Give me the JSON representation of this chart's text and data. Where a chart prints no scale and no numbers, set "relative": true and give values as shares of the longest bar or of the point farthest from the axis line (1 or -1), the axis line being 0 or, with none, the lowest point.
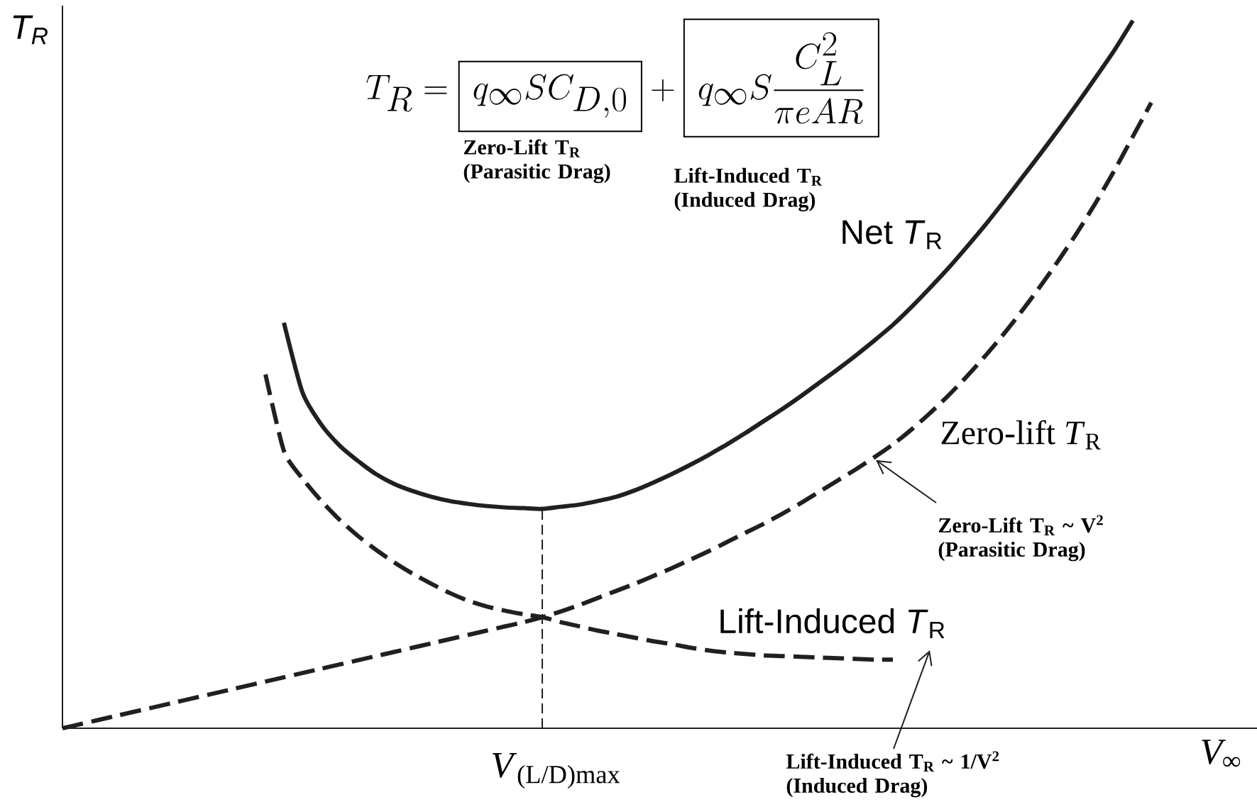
{
  "chart_data": {
    "type": "line",
    "relative": true,
    "legend": false,
    "marker": "none",
    "categories": [
      null,
      null,
      null,
      null,
      null,
      null,
      null,
      null,
      null,
      null,
      null,
      null,
      null,
      null,
      null,
      null,
      null,
      null,
      null,
      null,
      null,
      null,
      null,
      null,
      null,
      null,
      null,
      null,
      null,
      null,
      null,
      null,
      null,
      null,
      null,
      null,
      null,
      null,
      null,
      null,
      null,
      null,
      null,
      null,
      null,
      null,
      null,
      null,
      null,
      null,
      null,
      null,
      null,
      null,
      null,
      null,
      null,
      null,
      null,
      null
    ],
    "series": [
      {
        "name": "Net *T*$_{R}$",
        "color": "#231f20",
        "line_style": "solid",
        "values": [
          null,
          null,
          null,
          null,
          null,
          null,
          null,
          null,
          null,
          null,
          null,
          null,
          0.573,
          0.475,
          0.43,
          0.4,
          0.378,
          0.359,
          0.345,
          0.335,
          0.327,
          0.321,
          0.317,
          0.314,
          0.312,
          0.311,
          0.31,
          0.313,
          0.316,
          0.321,
          0.327,
          0.336,
          0.347,
          0.359,
          0.372,
          0.386,
          0.401,
          0.417,
          0.434,
          0.451,
          0.469,
          0.488,
          0.507,
          0.527,
          0.548,
          0.57,
          0.595,
          0.622,
          0.65,
          0.68,
          0.711,
          0.744,
          0.778,
          0.812,
          0.847,
          0.883,
          0.92,
          0.958,
          1,
          null
        ]
      },
      {
        "name": "Zero-lift *T*$_{R}$",
        "color": "#231f20",
        "line_style": "dashed",
        "values": [
          0,
          0.006,
          0.012,
          0.018,
          0.024,
          0.03,
          0.036,
          0.042,
          0.048,
          0.054,
          0.06,
          0.066,
          0.072,
          0.078,
          0.084,
          0.09,
          0.096,
          0.102,
          0.108,
          0.114,
          0.12,
          0.126,
          0.132,
          0.138,
          0.144,
          0.15,
          0.157,
          0.165,
          0.174,
          0.184,
          0.194,
          0.204,
          0.215,
          0.226,
          0.238,
          0.25,
          0.263,
          0.276,
          0.289,
          0.303,
          0.318,
          0.334,
          0.35,
          0.366,
          0.383,
          0.401,
          0.422,
          0.445,
          0.47,
          0.497,
          0.526,
          0.557,
          0.59,
          0.625,
          0.662,
          0.701,
          0.743,
          0.788,
          0.836,
          0.884
        ]
      },
      {
        "name": "Lift-Induced *T*$_{R}$",
        "color": "#231f20",
        "line_style": "dashed",
        "values": [
          null,
          null,
          null,
          null,
          null,
          null,
          null,
          null,
          null,
          null,
          null,
          0.5,
          0.392,
          0.353,
          0.322,
          0.295,
          0.272,
          0.252,
          0.234,
          0.218,
          0.204,
          0.191,
          0.18,
          0.172,
          0.166,
          0.161,
          0.157,
          0.15,
          0.144,
          0.138,
          0.133,
          0.128,
          0.123,
          0.119,
          0.114,
          0.11,
          0.107,
          0.105,
          0.103,
          0.102,
          0.101,
          0.1,
          0.099,
          0.098,
          0.097,
          0.097,
          null,
          null,
          null,
          null,
          null,
          null,
          null,
          null,
          null,
          null,
          null,
          null,
          null,
          null
        ]
      }
    ],
    "xlabel": "V$_{∞}$",
    "ylabel": "T$_{R}$",
    "annotations": [
      "T_R = \\boxed{q_\\infty S C_{D,0}} + \\boxed{q_\\infty S \\frac{C_L^2}{\\pi e A R}}",
      "Zero-Lift T$_{R}$ (Parasitic Drag)",
      "Lift-Induced T$_{R}$ (Induced Drag)",
      "Zero-Lift T$_{R}$ ~ V$^{2}$ (Parasitic Drag)",
      "Lift-Induced T$_{R}$ ~ 1/V$^{2}$ (Induced Drag)",
      "*V*$_{(L/D)max}$"
    ]
  }
}
